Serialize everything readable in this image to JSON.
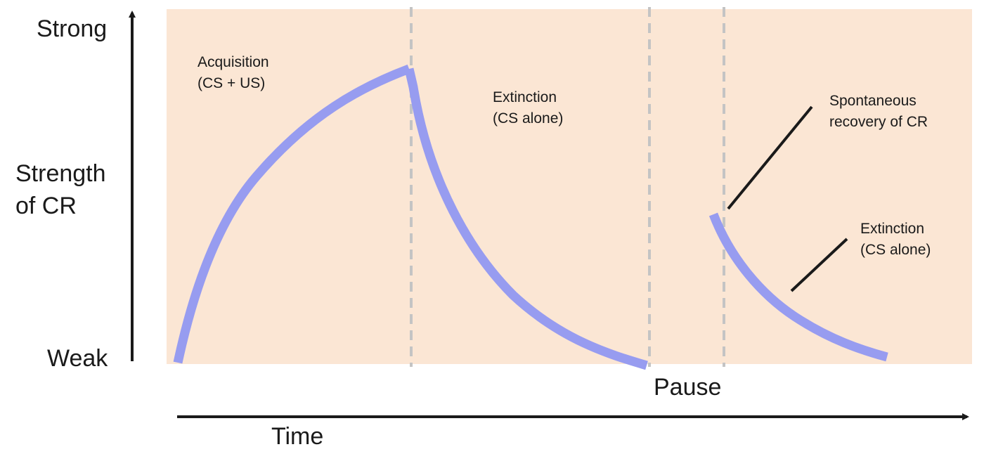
{
  "y_axis": {
    "top_label": "Strong",
    "middle_label_line1": "Strength",
    "middle_label_line2": "of CR",
    "bottom_label": "Weak"
  },
  "x_axis": {
    "label": "Time",
    "pause_label": "Pause"
  },
  "phases": {
    "acquisition": {
      "line1": "Acquisition",
      "line2": "(CS + US)"
    },
    "extinction_1": {
      "line1": "Extinction",
      "line2": "(CS alone)"
    },
    "spontaneous_recovery": {
      "line1": "Spontaneous",
      "line2": "recovery of CR"
    },
    "extinction_2": {
      "line1": "Extinction",
      "line2": "(CS alone)"
    }
  },
  "colors": {
    "background_panel": "#fbe6d4",
    "curve": "#979cf0",
    "divider": "#c4c4c4",
    "axis": "#1a1a1a"
  }
}
